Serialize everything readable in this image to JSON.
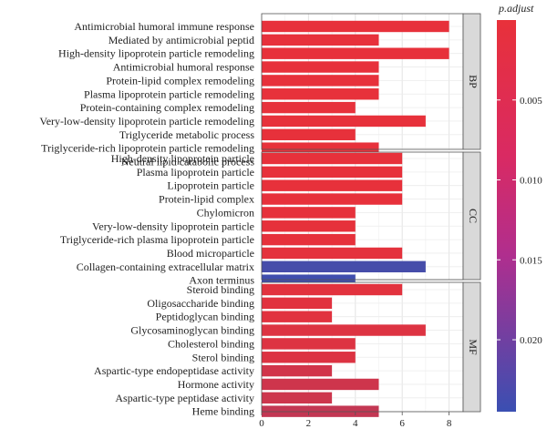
{
  "chart_data": {
    "type": "bar",
    "orientation": "horizontal",
    "grid": true,
    "legend": {
      "title": "p.adjust",
      "placement": "right",
      "ticks": [
        0.005,
        0.01,
        0.015,
        0.02
      ],
      "tick_labels": [
        "0.005",
        "0.010",
        "0.015",
        "0.020"
      ],
      "range": [
        0.0,
        0.0245
      ],
      "color_low": "#e8313a",
      "color_high": "#3a4fb2"
    },
    "xlim": [
      0,
      8.6
    ],
    "xticks": [
      0,
      2,
      4,
      6,
      8
    ],
    "xtick_labels": [
      "0",
      "2",
      "4",
      "6",
      "8"
    ],
    "panels": [
      {
        "label": "BP",
        "categories": [
          "Antimicrobial humoral immune response",
          "Mediated by antimicrobial peptid",
          "High-density lipoprotein particle remodeling",
          "Antimicrobial humoral response",
          "Protein-lipid complex remodeling",
          "Plasma lipoprotein particle remodeling",
          "Protein-containing complex remodeling",
          "Very-low-density lipoprotein particle remodeling",
          "Triglyceride metabolic process",
          "Triglyceride-rich lipoprotein particle remodeling",
          "Neutral lipid catabolic process"
        ],
        "values": [
          8,
          5,
          8,
          5,
          5,
          5,
          4,
          7,
          4,
          5,
          0
        ],
        "p_adjust": [
          0.0002,
          0.0002,
          0.0002,
          0.0002,
          0.0002,
          0.0002,
          0.0002,
          0.0002,
          0.0002,
          0.0002,
          0.0002
        ]
      },
      {
        "label": "CC",
        "categories": [
          "High-density lipoprotein particle",
          "Plasma lipoprotein particle",
          "Lipoprotein particle",
          "Protein-lipid complex",
          "Chylomicron",
          "Very-low-density lipoprotein particle",
          "Triglyceride-rich plasma lipoprotein particle",
          "Blood microparticle",
          "Collagen-containing extracellular matrix",
          "Axon terminus"
        ],
        "values": [
          6,
          6,
          6,
          6,
          4,
          4,
          4,
          6,
          7,
          4
        ],
        "p_adjust": [
          0.0002,
          0.0002,
          0.0002,
          0.0002,
          0.0003,
          0.0003,
          0.0003,
          0.0006,
          0.0228,
          0.0236
        ]
      },
      {
        "label": "MF",
        "categories": [
          "Steroid binding",
          "Oligosaccharide binding",
          "Peptidoglycan binding",
          "Glycosaminoglycan binding",
          "Cholesterol binding",
          "Sterol binding",
          "Aspartic-type endopeptidase activity",
          "Hormone activity",
          "Aspartic-type peptidase activity",
          "Heme binding"
        ],
        "values": [
          6,
          3,
          3,
          7,
          4,
          4,
          3,
          5,
          3,
          5
        ],
        "p_adjust": [
          0.0009,
          0.001,
          0.001,
          0.0016,
          0.0016,
          0.0017,
          0.0033,
          0.0036,
          0.0038,
          0.0052
        ]
      }
    ]
  }
}
